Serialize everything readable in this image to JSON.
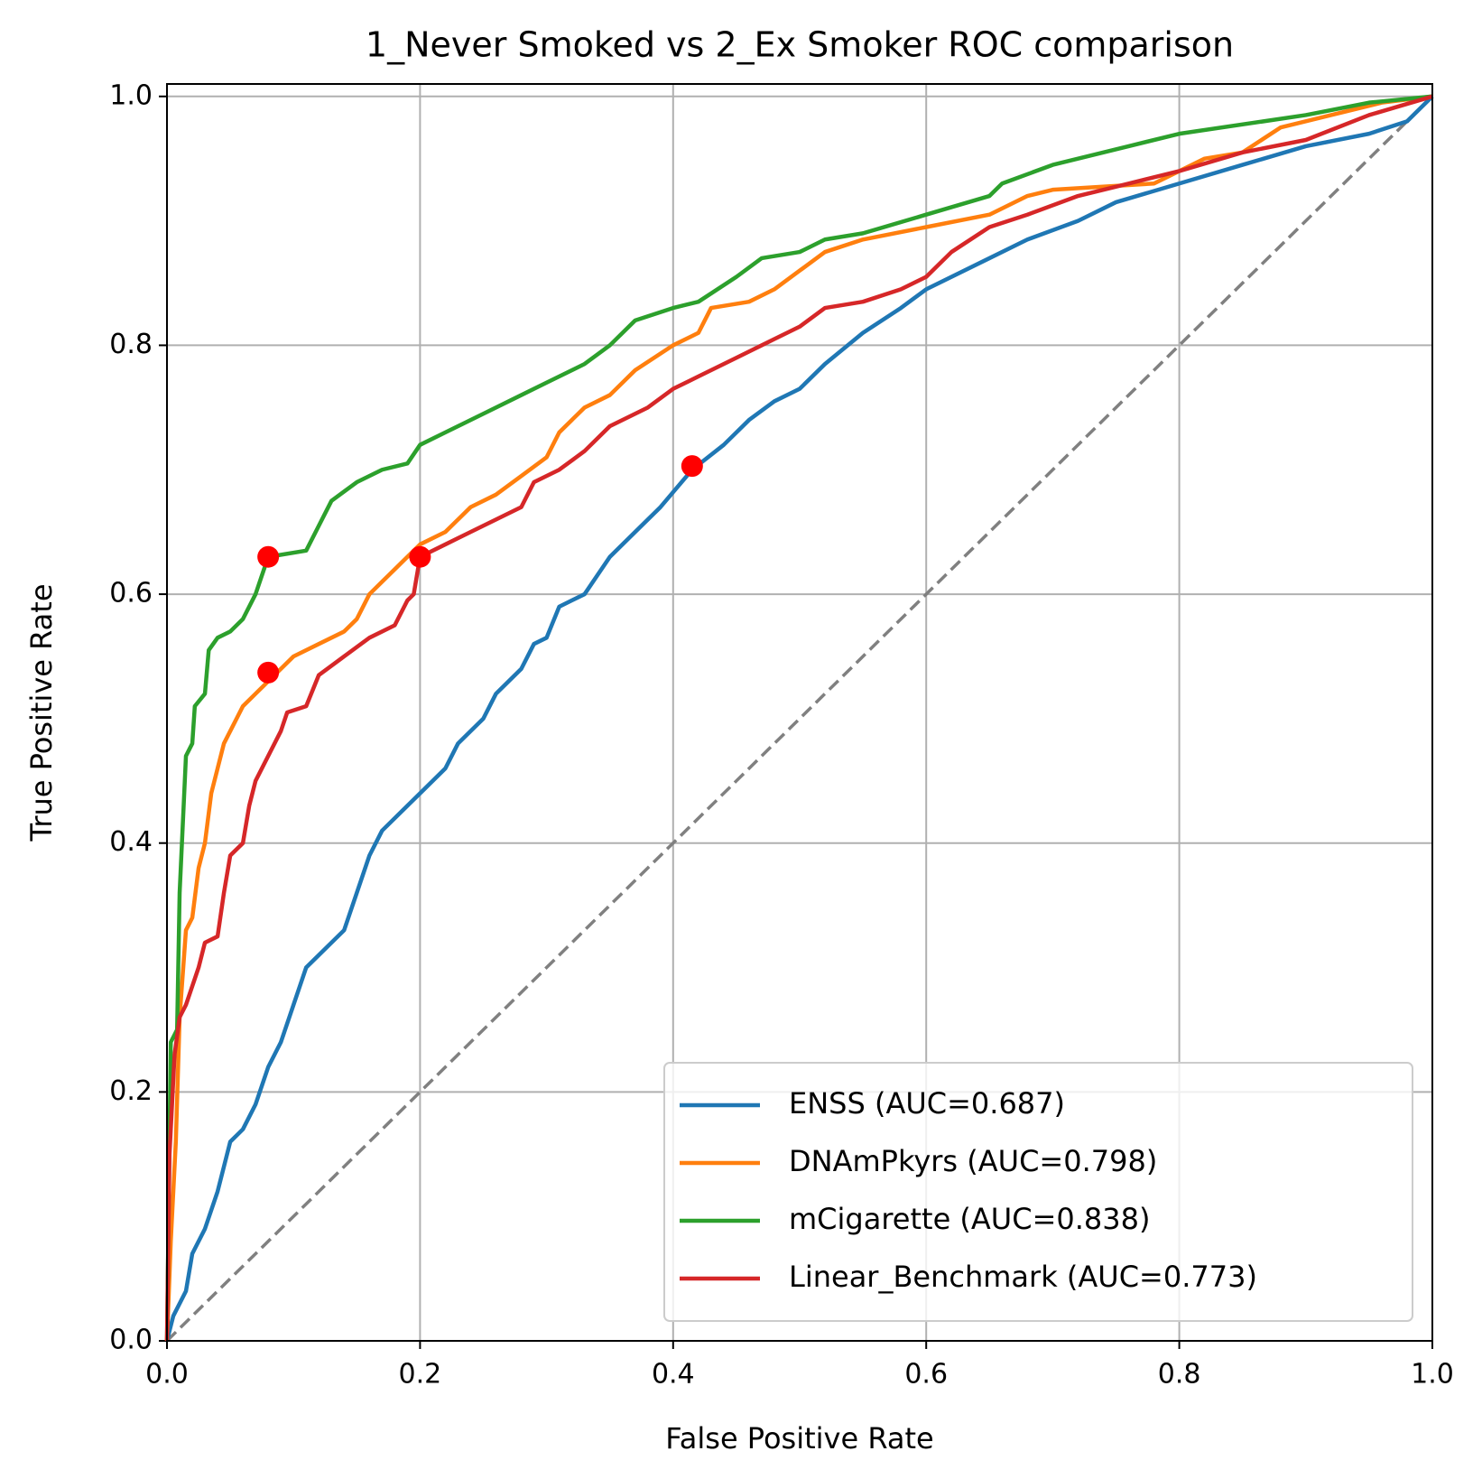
{
  "chart_data": {
    "type": "line",
    "title": "1_Never Smoked vs 2_Ex Smoker ROC comparison",
    "xlabel": "False Positive Rate",
    "ylabel": "True Positive Rate",
    "xlim": [
      0,
      1
    ],
    "ylim": [
      0,
      1.01
    ],
    "xticks": [
      {
        "value": 0,
        "label": "0.0"
      },
      0.2,
      0.4,
      0.6,
      0.8,
      {
        "value": 1,
        "label": "1.0"
      }
    ],
    "yticks": [
      {
        "value": 0,
        "label": "0.0"
      },
      0.2,
      0.4,
      0.6,
      0.8,
      {
        "value": 1,
        "label": "1.0"
      }
    ],
    "grid": true,
    "legend": "lower right",
    "series": [
      {
        "name": "ENSS (AUC=0.687)",
        "color": "#1f77b4",
        "x": [
          0,
          0.005,
          0.015,
          0.02,
          0.03,
          0.04,
          0.05,
          0.06,
          0.07,
          0.08,
          0.09,
          0.1,
          0.11,
          0.12,
          0.14,
          0.15,
          0.16,
          0.17,
          0.19,
          0.2,
          0.22,
          0.23,
          0.25,
          0.26,
          0.28,
          0.29,
          0.3,
          0.31,
          0.33,
          0.35,
          0.37,
          0.39,
          0.415,
          0.44,
          0.46,
          0.48,
          0.5,
          0.52,
          0.55,
          0.58,
          0.6,
          0.65,
          0.68,
          0.72,
          0.75,
          0.8,
          0.85,
          0.9,
          0.95,
          0.98,
          1
        ],
        "values": [
          0,
          0.02,
          0.04,
          0.07,
          0.09,
          0.12,
          0.16,
          0.17,
          0.19,
          0.22,
          0.24,
          0.27,
          0.3,
          0.31,
          0.33,
          0.36,
          0.39,
          0.41,
          0.43,
          0.44,
          0.46,
          0.48,
          0.5,
          0.52,
          0.54,
          0.56,
          0.565,
          0.59,
          0.6,
          0.63,
          0.65,
          0.67,
          0.7,
          0.72,
          0.74,
          0.755,
          0.765,
          0.785,
          0.81,
          0.83,
          0.845,
          0.87,
          0.885,
          0.9,
          0.915,
          0.93,
          0.945,
          0.96,
          0.97,
          0.98,
          1
        ]
      },
      {
        "name": "DNAmPkyrs (AUC=0.798)",
        "color": "#ff7f0e",
        "x": [
          0,
          0.003,
          0.007,
          0.01,
          0.015,
          0.02,
          0.025,
          0.03,
          0.035,
          0.04,
          0.045,
          0.05,
          0.06,
          0.07,
          0.08,
          0.1,
          0.12,
          0.14,
          0.15,
          0.16,
          0.17,
          0.18,
          0.2,
          0.22,
          0.24,
          0.26,
          0.28,
          0.3,
          0.31,
          0.33,
          0.35,
          0.37,
          0.4,
          0.42,
          0.43,
          0.46,
          0.48,
          0.5,
          0.52,
          0.55,
          0.6,
          0.65,
          0.68,
          0.7,
          0.78,
          0.82,
          0.85,
          0.88,
          0.92,
          0.96,
          1
        ],
        "values": [
          0,
          0.08,
          0.16,
          0.26,
          0.33,
          0.34,
          0.38,
          0.4,
          0.44,
          0.46,
          0.48,
          0.49,
          0.51,
          0.52,
          0.53,
          0.55,
          0.56,
          0.57,
          0.58,
          0.6,
          0.61,
          0.62,
          0.64,
          0.65,
          0.67,
          0.68,
          0.695,
          0.71,
          0.73,
          0.75,
          0.76,
          0.78,
          0.8,
          0.81,
          0.83,
          0.835,
          0.845,
          0.86,
          0.875,
          0.885,
          0.895,
          0.905,
          0.92,
          0.925,
          0.93,
          0.95,
          0.955,
          0.975,
          0.985,
          0.995,
          1
        ]
      },
      {
        "name": "mCigarette (AUC=0.838)",
        "color": "#2ca02c",
        "x": [
          0,
          0.003,
          0.008,
          0.01,
          0.015,
          0.02,
          0.022,
          0.03,
          0.033,
          0.04,
          0.05,
          0.06,
          0.07,
          0.075,
          0.08,
          0.11,
          0.12,
          0.13,
          0.15,
          0.17,
          0.19,
          0.2,
          0.22,
          0.25,
          0.28,
          0.3,
          0.33,
          0.35,
          0.37,
          0.4,
          0.42,
          0.45,
          0.47,
          0.5,
          0.52,
          0.55,
          0.6,
          0.65,
          0.66,
          0.7,
          0.74,
          0.76,
          0.8,
          0.9,
          0.95,
          1
        ],
        "values": [
          0,
          0.24,
          0.25,
          0.36,
          0.47,
          0.48,
          0.51,
          0.52,
          0.555,
          0.565,
          0.57,
          0.58,
          0.6,
          0.615,
          0.63,
          0.635,
          0.655,
          0.675,
          0.69,
          0.7,
          0.705,
          0.72,
          0.73,
          0.745,
          0.76,
          0.77,
          0.785,
          0.8,
          0.82,
          0.83,
          0.835,
          0.855,
          0.87,
          0.875,
          0.885,
          0.89,
          0.905,
          0.92,
          0.93,
          0.945,
          0.955,
          0.96,
          0.97,
          0.985,
          0.995,
          1
        ]
      },
      {
        "name": "Linear_Benchmark (AUC=0.773)",
        "color": "#d62728",
        "x": [
          0,
          0.002,
          0.006,
          0.01,
          0.015,
          0.025,
          0.03,
          0.04,
          0.045,
          0.05,
          0.06,
          0.065,
          0.07,
          0.08,
          0.09,
          0.095,
          0.11,
          0.12,
          0.14,
          0.16,
          0.18,
          0.19,
          0.195,
          0.2,
          0.22,
          0.24,
          0.26,
          0.28,
          0.29,
          0.31,
          0.33,
          0.35,
          0.38,
          0.4,
          0.42,
          0.45,
          0.48,
          0.5,
          0.52,
          0.55,
          0.58,
          0.6,
          0.62,
          0.65,
          0.68,
          0.72,
          0.76,
          0.8,
          0.85,
          0.9,
          0.95,
          1
        ],
        "values": [
          0,
          0.15,
          0.23,
          0.26,
          0.27,
          0.3,
          0.32,
          0.325,
          0.36,
          0.39,
          0.4,
          0.43,
          0.45,
          0.47,
          0.49,
          0.505,
          0.51,
          0.535,
          0.55,
          0.565,
          0.575,
          0.595,
          0.6,
          0.63,
          0.64,
          0.65,
          0.66,
          0.67,
          0.69,
          0.7,
          0.715,
          0.735,
          0.75,
          0.765,
          0.775,
          0.79,
          0.805,
          0.815,
          0.83,
          0.835,
          0.845,
          0.855,
          0.875,
          0.895,
          0.905,
          0.92,
          0.93,
          0.94,
          0.955,
          0.965,
          0.985,
          1
        ]
      }
    ],
    "reference_line": {
      "x": [
        0,
        1
      ],
      "values": [
        0,
        1
      ],
      "color": "gray",
      "style": "dashed"
    },
    "markers": {
      "color": "red",
      "x": [
        0.08,
        0.08,
        0.2,
        0.415
      ],
      "values": [
        0.63,
        0.537,
        0.63,
        0.703
      ]
    }
  }
}
